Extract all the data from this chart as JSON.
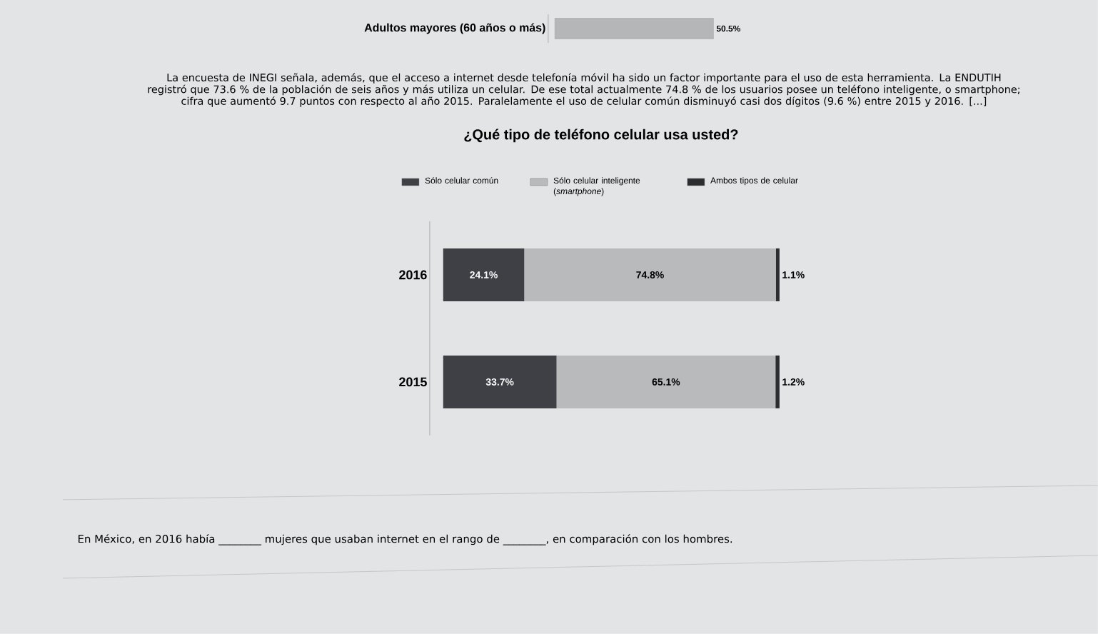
{
  "chart_data": [
    {
      "type": "bar",
      "orientation": "horizontal",
      "categories": [
        "Adultos mayores (60 años o más)"
      ],
      "series": [
        {
          "color": "#b4b6b8",
          "values": [
            50.5
          ],
          "value_labels": [
            "50.5%"
          ]
        }
      ]
    },
    {
      "type": "bar",
      "orientation": "horizontal",
      "stacked": true,
      "title": "¿Qué tipo de teléfono celular usa usted?",
      "categories": [
        "2016",
        "2015"
      ],
      "legend": "top",
      "series": [
        {
          "name": "Sólo celular común",
          "color": "#3e4046",
          "values": [
            24.1,
            33.7
          ],
          "value_labels": [
            "24.1%",
            "33.7%"
          ]
        },
        {
          "name": "Sólo celular inteligente (*smartphone*)",
          "color": "#b8babc",
          "values": [
            74.8,
            65.1
          ],
          "value_labels": [
            "74.8%",
            "65.1%"
          ]
        },
        {
          "name": "Ambos tipos de celular",
          "color": "#2c2d31",
          "values": [
            1.1,
            1.2
          ],
          "value_labels": [
            "1.1%",
            "1.2%"
          ]
        }
      ],
      "annotations": [
        "La encuesta de INEGI señala, además, que el acceso a internet desde telefonía móvil ha sido un factor importante para el uso de esta herramienta. La ENDUTIH registró que 73.6 % de la población de seis años y más utiliza un celular. De ese total actualmente 74.8 % de los usuarios posee un teléfono inteligente, o smartphone; cifra que aumentó 9.7 puntos con respecto al año 2015. Paralelamente el uso de celular común disminuyó casi dos dígitos (9.6 %) entre 2015 y 2016. [...]",
        "En México, en 2016 había ________ mujeres que usaban internet en el rango de ________, en comparación con los hombres."
      ]
    }
  ]
}
